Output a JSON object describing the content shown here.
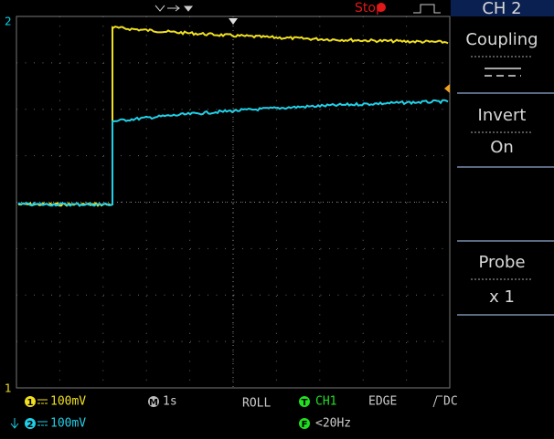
{
  "top_bar": {
    "ch2_marker": "2",
    "status": "Stop"
  },
  "menu": {
    "title": "CH 2",
    "coupling": "Coupling",
    "invert": "Invert",
    "invert_value": "On",
    "probe": "Probe",
    "probe_value": "x 1"
  },
  "ch1_marker": "1",
  "status_bar": {
    "ch1_badge": "1",
    "ch1_scale": "100mV",
    "ch2_badge": "2",
    "ch2_scale": "100mV",
    "time_badge": "M",
    "timebase": "1s",
    "mode": "ROLL",
    "trigger_badge": "T",
    "trigger_source": "CH1",
    "trigger_type": "EDGE",
    "trigger_coupling": "DC",
    "filter_badge": "F",
    "filter": "<20Hz"
  }
}
